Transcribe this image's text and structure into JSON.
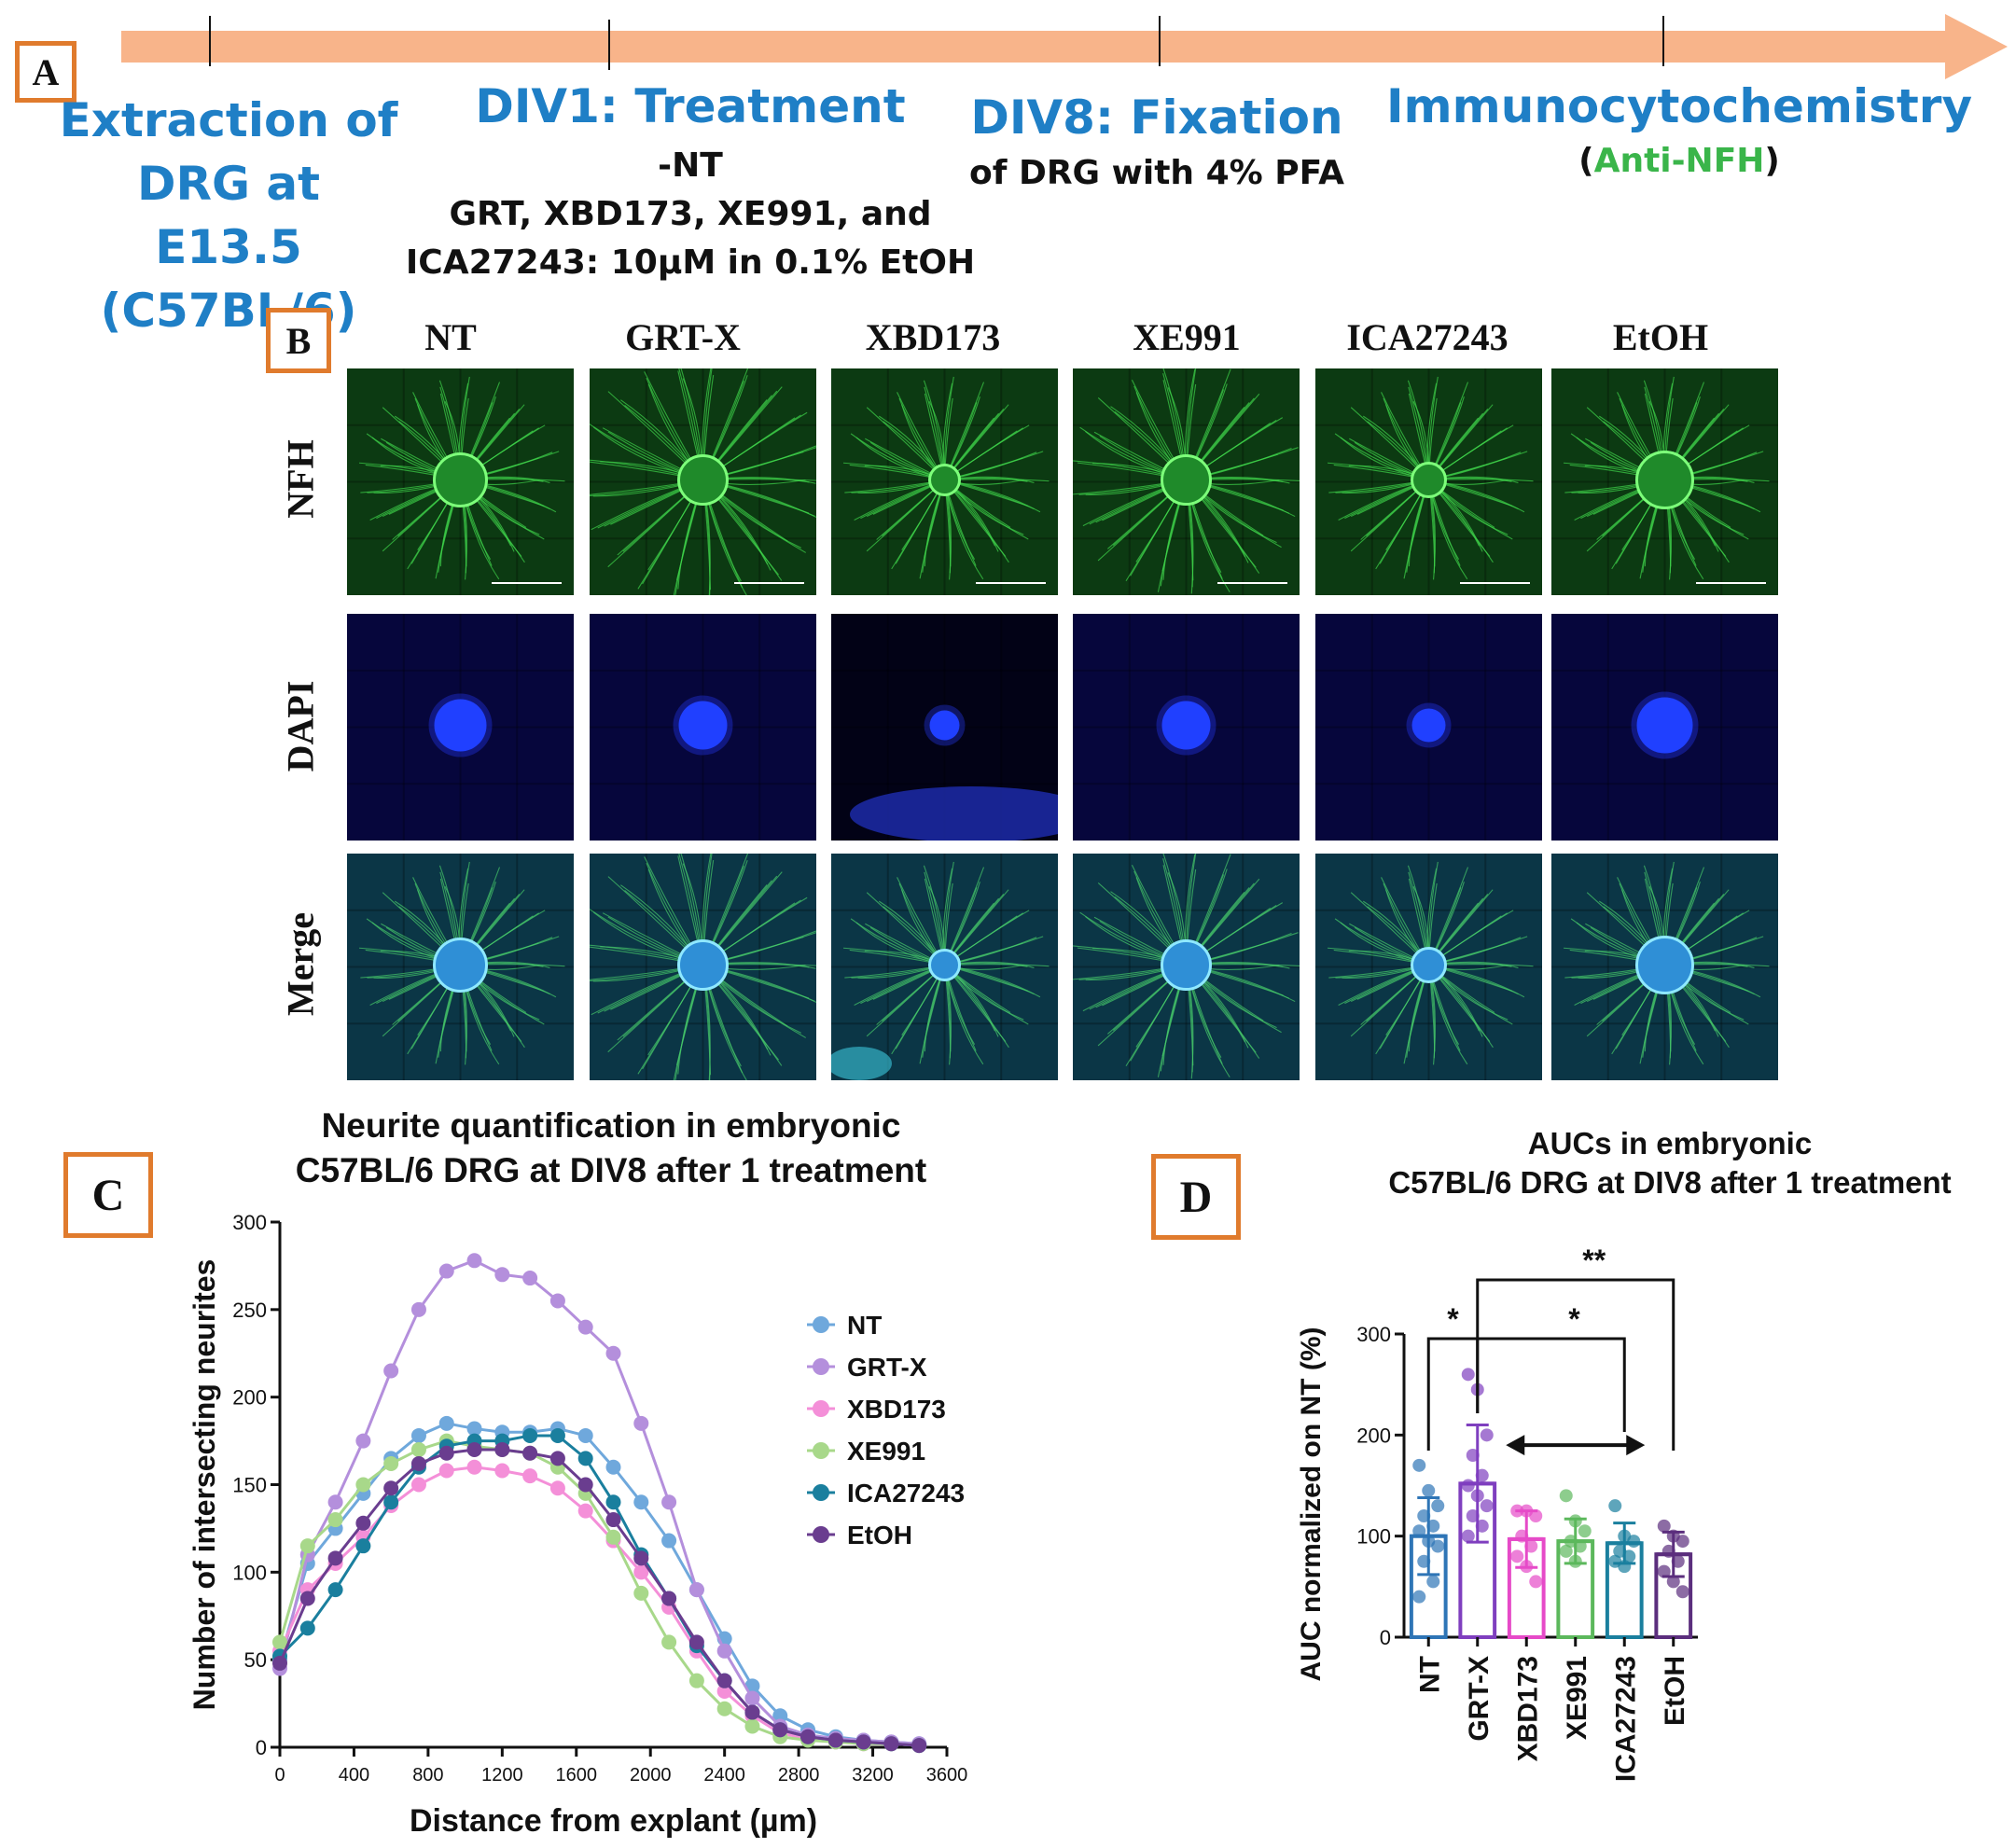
{
  "panel_a": {
    "letter": "A",
    "steps": [
      {
        "title_lines": [
          "Extraction of",
          "DRG at E13.5",
          "(C57BL/6)"
        ]
      },
      {
        "title": "DIV1: Treatment",
        "lines": [
          "-NT",
          "GRT, XBD173, XE991, and",
          "ICA27243: 10µM in 0.1% EtOH"
        ]
      },
      {
        "title": "DIV8: Fixation",
        "lines": [
          "of DRG with 4% PFA"
        ]
      },
      {
        "title": "Immunocytochemistry",
        "paren_open": "(",
        "stain": "Anti-NFH",
        "paren_close": ")"
      }
    ],
    "colors": {
      "arrow": "#f8b48a",
      "title": "#1f7fc6",
      "stain": "#3ab54a"
    }
  },
  "panel_b": {
    "letter": "B",
    "columns": [
      "NT",
      "GRT-X",
      "XBD173",
      "XE991",
      "ICA27243",
      "EtOH"
    ],
    "rows": [
      "NFH",
      "DAPI",
      "Merge"
    ]
  },
  "panel_c": {
    "letter": "C",
    "title_lines": [
      "Neurite quantification in embryonic",
      "C57BL/6 DRG at DIV8 after 1 treatment"
    ]
  },
  "panel_d": {
    "letter": "D",
    "title_lines": [
      "AUCs in embryonic",
      "C57BL/6 DRG at DIV8 after 1 treatment"
    ],
    "significance": [
      "*",
      "*",
      "**"
    ]
  },
  "chart_data": [
    {
      "type": "scatter",
      "title": "Neurite quantification in embryonic C57BL/6 DRG at DIV8 after 1 treatment",
      "xlabel": "Distance from explant (µm)",
      "ylabel": "Number of intersecting neurites",
      "xlim": [
        0,
        3600
      ],
      "ylim": [
        0,
        300
      ],
      "xticks": [
        0,
        400,
        800,
        1200,
        1600,
        2000,
        2400,
        2800,
        3200,
        3600
      ],
      "yticks": [
        0,
        50,
        100,
        150,
        200,
        250,
        300
      ],
      "legend_position": "right",
      "series": [
        {
          "name": "NT",
          "color": "#6fa8dc",
          "x": [
            0,
            150,
            300,
            450,
            600,
            750,
            900,
            1050,
            1200,
            1350,
            1500,
            1650,
            1800,
            1950,
            2100,
            2250,
            2400,
            2550,
            2700,
            2850,
            3000,
            3150,
            3300,
            3450
          ],
          "y": [
            50,
            105,
            125,
            145,
            165,
            178,
            185,
            182,
            180,
            180,
            182,
            178,
            160,
            140,
            118,
            90,
            62,
            35,
            18,
            10,
            6,
            4,
            3,
            2
          ]
        },
        {
          "name": "GRT-X",
          "color": "#b48fdc",
          "x": [
            0,
            150,
            300,
            450,
            600,
            750,
            900,
            1050,
            1200,
            1350,
            1500,
            1650,
            1800,
            1950,
            2100,
            2250,
            2400,
            2550,
            2700,
            2850,
            3000,
            3150,
            3300,
            3450
          ],
          "y": [
            45,
            110,
            140,
            175,
            215,
            250,
            272,
            278,
            270,
            268,
            255,
            240,
            225,
            185,
            140,
            90,
            55,
            28,
            12,
            7,
            5,
            4,
            3,
            2
          ]
        },
        {
          "name": "XBD173",
          "color": "#f48fd8",
          "x": [
            0,
            150,
            300,
            450,
            600,
            750,
            900,
            1050,
            1200,
            1350,
            1500,
            1650,
            1800,
            1950,
            2100,
            2250,
            2400,
            2550,
            2700,
            2850,
            3000,
            3150,
            3300,
            3450
          ],
          "y": [
            55,
            90,
            105,
            120,
            138,
            150,
            158,
            160,
            158,
            155,
            148,
            135,
            118,
            100,
            80,
            55,
            32,
            18,
            8,
            5,
            3,
            2,
            2,
            1
          ]
        },
        {
          "name": "XE991",
          "color": "#a8d88a",
          "x": [
            0,
            150,
            300,
            450,
            600,
            750,
            900,
            1050,
            1200,
            1350,
            1500,
            1650,
            1800,
            1950,
            2100,
            2250,
            2400,
            2550,
            2700,
            2850,
            3000,
            3150,
            3300,
            3450
          ],
          "y": [
            60,
            115,
            130,
            150,
            162,
            170,
            175,
            172,
            170,
            168,
            160,
            145,
            120,
            88,
            60,
            38,
            22,
            12,
            6,
            4,
            3,
            2,
            2,
            1
          ]
        },
        {
          "name": "ICA27243",
          "color": "#1a7f9e",
          "x": [
            0,
            150,
            300,
            450,
            600,
            750,
            900,
            1050,
            1200,
            1350,
            1500,
            1650,
            1800,
            1950,
            2100,
            2250,
            2400,
            2550,
            2700,
            2850,
            3000,
            3150,
            3300,
            3450
          ],
          "y": [
            52,
            68,
            90,
            115,
            140,
            160,
            172,
            175,
            175,
            178,
            178,
            165,
            140,
            110,
            85,
            58,
            38,
            20,
            10,
            6,
            4,
            3,
            2,
            1
          ]
        },
        {
          "name": "EtOH",
          "color": "#6a3d8f",
          "x": [
            0,
            150,
            300,
            450,
            600,
            750,
            900,
            1050,
            1200,
            1350,
            1500,
            1650,
            1800,
            1950,
            2100,
            2250,
            2400,
            2550,
            2700,
            2850,
            3000,
            3150,
            3300,
            3450
          ],
          "y": [
            48,
            85,
            108,
            128,
            148,
            162,
            168,
            170,
            170,
            168,
            165,
            150,
            130,
            108,
            85,
            60,
            38,
            20,
            10,
            6,
            4,
            3,
            2,
            1
          ]
        }
      ]
    },
    {
      "type": "bar",
      "title": "AUCs in embryonic C57BL/6 DRG at DIV8 after 1 treatment",
      "xlabel": "",
      "ylabel": "AUC normalized on NT (%)",
      "ylim": [
        0,
        300
      ],
      "yticks": [
        0,
        100,
        200,
        300
      ],
      "categories": [
        "NT",
        "GRT-X",
        "XBD173",
        "XE991",
        "ICA27243",
        "EtOH"
      ],
      "values": [
        100,
        152,
        97,
        95,
        93,
        82
      ],
      "errors": [
        38,
        58,
        28,
        22,
        20,
        22
      ],
      "colors": [
        "#2e75b6",
        "#7f3fbf",
        "#e64ac8",
        "#5cb85c",
        "#1a7f9e",
        "#5b2e7d"
      ],
      "points": [
        [
          170,
          145,
          130,
          120,
          110,
          105,
          95,
          90,
          75,
          55,
          40
        ],
        [
          260,
          245,
          200,
          180,
          160,
          150,
          140,
          130,
          120,
          110,
          100
        ],
        [
          125,
          125,
          120,
          100,
          90,
          80,
          70,
          55
        ],
        [
          140,
          115,
          105,
          95,
          90,
          85,
          75
        ],
        [
          130,
          100,
          95,
          85,
          80,
          75,
          70
        ],
        [
          110,
          100,
          95,
          85,
          75,
          65,
          55,
          45
        ]
      ]
    }
  ]
}
